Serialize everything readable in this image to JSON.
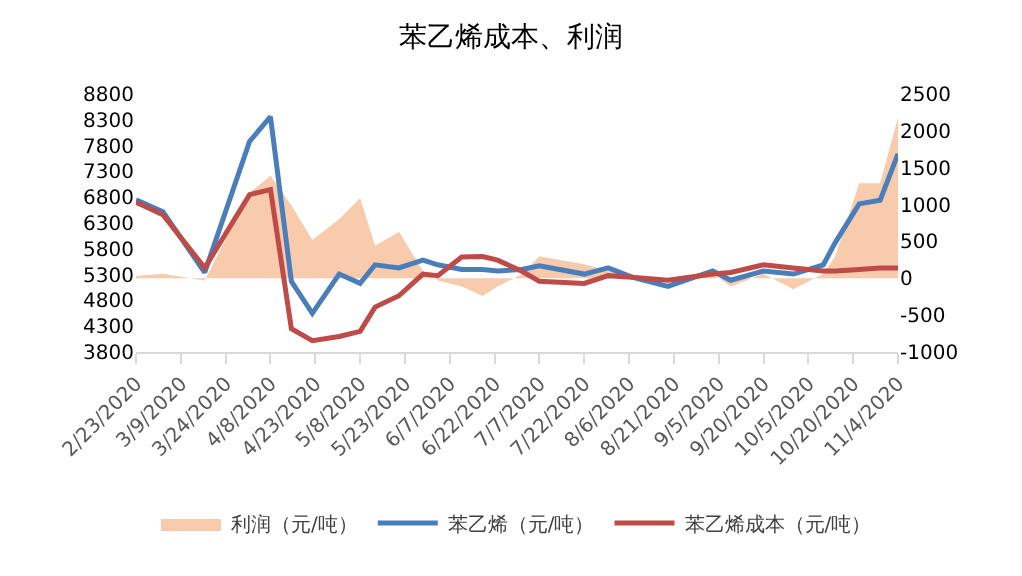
{
  "chart_data": {
    "type": "line",
    "title": "苯乙烯成本、利润",
    "x": [
      "2020-02-23",
      "2020-03-03",
      "2020-03-17",
      "2020-04-01",
      "2020-04-08",
      "2020-04-15",
      "2020-04-22",
      "2020-05-01",
      "2020-05-08",
      "2020-05-13",
      "2020-05-21",
      "2020-05-29",
      "2020-06-03",
      "2020-06-11",
      "2020-06-18",
      "2020-06-23",
      "2020-07-01",
      "2020-07-07",
      "2020-07-22",
      "2020-07-30",
      "2020-08-07",
      "2020-08-19",
      "2020-09-03",
      "2020-09-09",
      "2020-09-20",
      "2020-09-30",
      "2020-10-10",
      "2020-10-14",
      "2020-10-22",
      "2020-10-29",
      "2020-11-04"
    ],
    "series": [
      {
        "name": "利润（元/吨）",
        "type": "area",
        "axis": "y2",
        "color": "#f8cbad",
        "values": [
          30,
          60,
          -30,
          1160,
          1390,
          990,
          520,
          800,
          1090,
          440,
          630,
          100,
          -30,
          -110,
          -240,
          -110,
          50,
          300,
          190,
          100,
          20,
          -30,
          60,
          -110,
          60,
          -150,
          60,
          300,
          1290,
          1290,
          2180
        ]
      },
      {
        "name": "苯乙烯（元/吨）",
        "color": "#4a7ebb",
        "values": [
          6750,
          6520,
          5340,
          7880,
          8360,
          5170,
          4550,
          5310,
          5130,
          5490,
          5430,
          5580,
          5490,
          5400,
          5400,
          5370,
          5400,
          5470,
          5310,
          5430,
          5250,
          5070,
          5370,
          5190,
          5370,
          5310,
          5490,
          5920,
          6670,
          6740,
          7640
        ]
      },
      {
        "name": "苯乙烯成本（元/吨）",
        "color": "#be4b48",
        "values": [
          6700,
          6460,
          5430,
          6850,
          6950,
          4250,
          4020,
          4100,
          4200,
          4670,
          4890,
          5310,
          5280,
          5640,
          5650,
          5580,
          5370,
          5170,
          5130,
          5280,
          5250,
          5190,
          5310,
          5340,
          5490,
          5430,
          5370,
          5370,
          5400,
          5430,
          5430
        ]
      }
    ],
    "xlim": [
      "2020-02-23",
      "2020-11-04"
    ],
    "xticks": [
      {
        "value": "2020-02-23",
        "label": "2/23/2020"
      },
      {
        "value": "2020-03-09",
        "label": "3/9/2020"
      },
      {
        "value": "2020-03-24",
        "label": "3/24/2020"
      },
      {
        "value": "2020-04-08",
        "label": "4/8/2020"
      },
      {
        "value": "2020-04-23",
        "label": "4/23/2020"
      },
      {
        "value": "2020-05-08",
        "label": "5/8/2020"
      },
      {
        "value": "2020-05-23",
        "label": "5/23/2020"
      },
      {
        "value": "2020-06-07",
        "label": "6/7/2020"
      },
      {
        "value": "2020-06-22",
        "label": "6/22/2020"
      },
      {
        "value": "2020-07-07",
        "label": "7/7/2020"
      },
      {
        "value": "2020-07-22",
        "label": "7/22/2020"
      },
      {
        "value": "2020-08-06",
        "label": "8/6/2020"
      },
      {
        "value": "2020-08-21",
        "label": "8/21/2020"
      },
      {
        "value": "2020-09-05",
        "label": "9/5/2020"
      },
      {
        "value": "2020-09-20",
        "label": "9/20/2020"
      },
      {
        "value": "2020-10-05",
        "label": "10/5/2020"
      },
      {
        "value": "2020-10-20",
        "label": "10/20/2020"
      },
      {
        "value": "2020-11-04",
        "label": "11/4/2020"
      }
    ],
    "ylim": [
      3800,
      8800
    ],
    "yticks": [
      3800,
      4300,
      4800,
      5300,
      5800,
      6300,
      6800,
      7300,
      7800,
      8300,
      8800
    ],
    "y2lim": [
      -1000,
      2500
    ],
    "y2ticks": [
      -1000,
      -500,
      0,
      500,
      1000,
      1500,
      2000,
      2500
    ],
    "legend": "bottom"
  }
}
